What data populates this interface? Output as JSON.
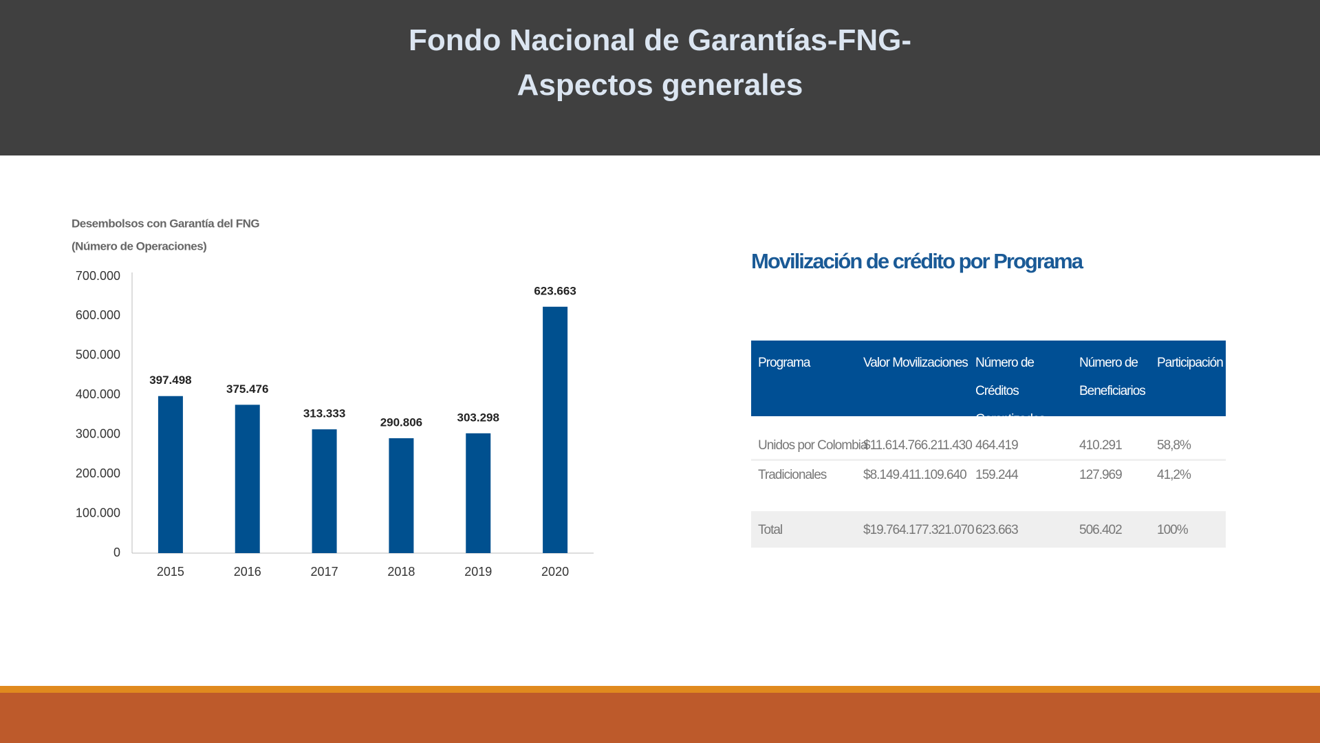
{
  "header": {
    "title_lines": [
      "Fondo Nacional de Garantías-FNG-",
      "Aspectos generales"
    ]
  },
  "chart_data": {
    "type": "bar",
    "title": "Desembolsos con Garantía del FNG",
    "subtitle": "(Número de Operaciones)",
    "categories": [
      "2015",
      "2016",
      "2017",
      "2018",
      "2019",
      "2020"
    ],
    "values": [
      397498,
      375476,
      313333,
      290806,
      303298,
      623663
    ],
    "value_labels": [
      "397.498",
      "375.476",
      "313.333",
      "290.806",
      "303.298",
      "623.663"
    ],
    "color": "#00508f",
    "ylim": [
      0,
      700000
    ],
    "yticks": [
      0,
      {
        "value": 100000,
        "label": "100.000"
      },
      {
        "value": 200000,
        "label": "200.000"
      },
      {
        "value": 300000,
        "label": "300.000"
      },
      {
        "value": 400000,
        "label": "400.000"
      },
      {
        "value": 500000,
        "label": "500.000"
      },
      {
        "value": 600000,
        "label": "600.000"
      },
      {
        "value": 700000,
        "label": "700.000"
      }
    ],
    "grid": false
  },
  "table": {
    "title": "Movilización de crédito por Programa",
    "columns": [
      "Programa",
      "Valor Movilizaciones",
      "Número de Créditos Garantizados",
      "Número de Beneficiarios",
      "Participación"
    ],
    "rows": [
      [
        "Unidos por Colombia",
        "$11.614.766.211.430",
        "464.419",
        "410.291",
        "58,8%"
      ],
      [
        "Tradicionales",
        "$8.149.411.109.640",
        "159.244",
        "127.969",
        "41,2%"
      ]
    ],
    "total": [
      "Total",
      "$19.764.177.321.070",
      "623.663",
      "506.402",
      "100%"
    ]
  }
}
